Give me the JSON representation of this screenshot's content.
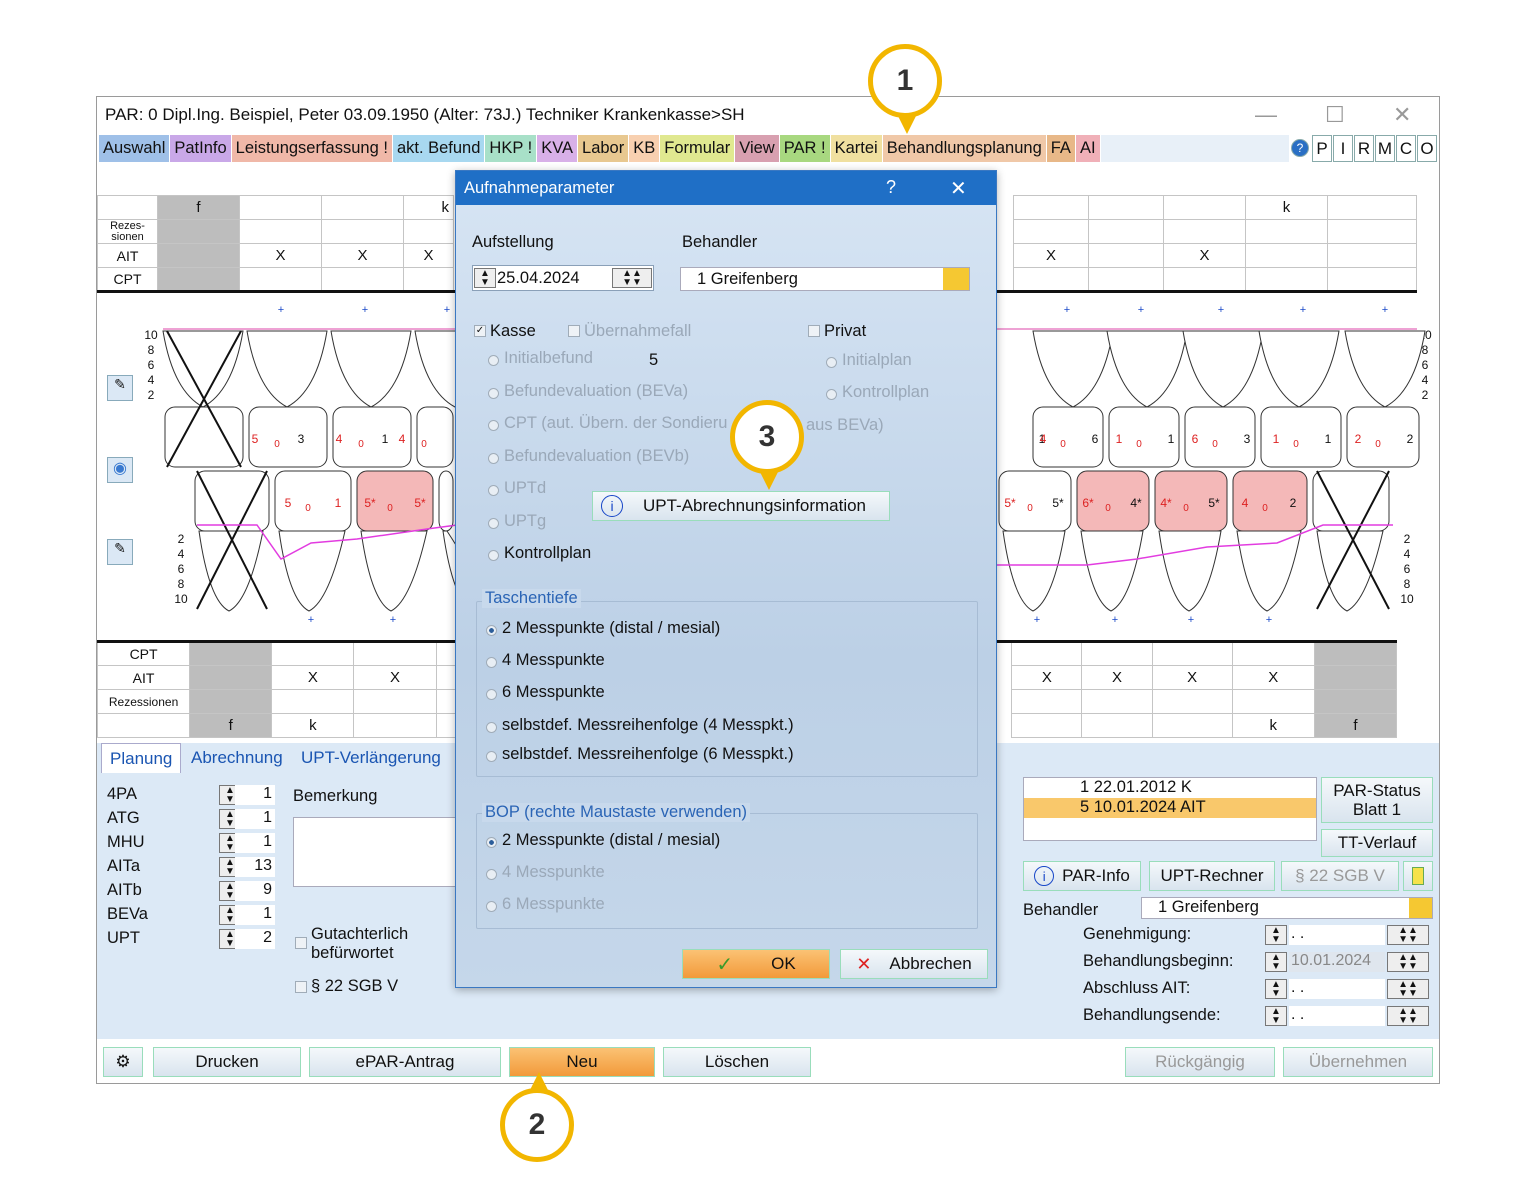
{
  "window": {
    "title": "PAR: 0  Dipl.Ing. Beispiel, Peter  03.09.1950 (Alter: 73J.)  Techniker Krankenkasse>SH",
    "controls": [
      "—",
      "☐",
      "✕"
    ]
  },
  "menu": [
    {
      "label": "Auswahl",
      "color": "#9fc0e8"
    },
    {
      "label": "PatInfo",
      "color": "#c9a8e8"
    },
    {
      "label": "Leistungserfassung !",
      "color": "#f0b8a8"
    },
    {
      "label": "akt. Befund",
      "color": "#a8d8f0"
    },
    {
      "label": "HKP !",
      "color": "#a8e0c8"
    },
    {
      "label": "KVA",
      "color": "#d8b0e8"
    },
    {
      "label": "Labor",
      "color": "#e8c890"
    },
    {
      "label": "KB",
      "color": "#f8d0b0"
    },
    {
      "label": "Formular",
      "color": "#e0e890"
    },
    {
      "label": "View",
      "color": "#d8a0b0"
    },
    {
      "label": "PAR !",
      "color": "#a8d880"
    },
    {
      "label": "Kartei",
      "color": "#f0e0a0"
    },
    {
      "label": "Behandlungsplanung",
      "color": "#f0c8a8"
    },
    {
      "label": "FA",
      "color": "#e8b888"
    },
    {
      "label": "AI",
      "color": "#f0b0b8"
    }
  ],
  "menu_right": [
    "?",
    "P",
    "I",
    "R",
    "M",
    "C",
    "O"
  ],
  "upper_table": {
    "row_labels": [
      "Rezes-\nsionen",
      "AIT",
      "CPT"
    ],
    "col_f": "f",
    "left_k": "k",
    "right_k": "k",
    "x_mark": "X"
  },
  "lower_table": {
    "row_labels": [
      "CPT",
      "AIT",
      "Rezessionen"
    ],
    "f": "f",
    "k": "k",
    "x_mark": "X"
  },
  "scale_top": [
    "10",
    "8",
    "6",
    "4",
    "2"
  ],
  "scale_bottom": [
    "2",
    "4",
    "6",
    "8",
    "10"
  ],
  "teeth_upper_left": [
    [
      "5",
      "0",
      "3"
    ],
    [
      "4",
      "0",
      "1"
    ],
    [
      "4",
      "0",
      ""
    ]
  ],
  "teeth_upper_right": [
    [
      "",
      "",
      "1"
    ],
    [
      "4",
      "0",
      "6"
    ],
    [
      "1",
      "0",
      "1"
    ],
    [
      "6",
      "0",
      "3"
    ],
    [
      "1",
      "0",
      "1"
    ],
    [
      "2",
      "0",
      "2"
    ]
  ],
  "teeth_lower_left": [
    [
      "5",
      "0",
      "1"
    ],
    [
      "5*",
      "0",
      "5*"
    ],
    [
      "",
      "",
      ""
    ]
  ],
  "teeth_lower_right": [
    [
      "5*",
      "0",
      "5*"
    ],
    [
      "6*",
      "0",
      "4*"
    ],
    [
      "4*",
      "0",
      "5*"
    ],
    [
      "4",
      "0",
      "2"
    ]
  ],
  "tabs": [
    "Planung",
    "Abrechnung",
    "UPT-Verlängerung"
  ],
  "planning": [
    {
      "label": "4PA",
      "value": "1"
    },
    {
      "label": "ATG",
      "value": "1"
    },
    {
      "label": "MHU",
      "value": "1"
    },
    {
      "label": "AITa",
      "value": "13"
    },
    {
      "label": "AITb",
      "value": "9"
    },
    {
      "label": "BEVa",
      "value": "1"
    },
    {
      "label": "UPT",
      "value": "2"
    }
  ],
  "bemerkung": "Bemerkung",
  "gutachter": "Gutachterlich\nbefürwortet",
  "sgb": "§ 22 SGB V",
  "history": [
    {
      "text": "1  22.01.2012  K"
    },
    {
      "text": "5  10.01.2024  AIT"
    }
  ],
  "right_buttons": {
    "par_status": "PAR-Status\nBlatt 1",
    "tt_verlauf": "TT-Verlauf",
    "par_info": "PAR-Info",
    "upt_rechner": "UPT-Rechner",
    "sgb": "§ 22 SGB V"
  },
  "behandler_label": "Behandler",
  "behandler_value": "1 Greifenberg",
  "dates": [
    {
      "label": "Genehmigung:",
      "value": " .  . "
    },
    {
      "label": "Behandlungsbeginn:",
      "value": "10.01.2024"
    },
    {
      "label": "Abschluss AIT:",
      "value": " .  . "
    },
    {
      "label": "Behandlungsende:",
      "value": " .  . "
    }
  ],
  "bottom_buttons": {
    "drucken": "Drucken",
    "epar": "ePAR-Antrag",
    "neu": "Neu",
    "loeschen": "Löschen",
    "rueckgaengig": "Rückgängig",
    "uebernehmen": "Übernehmen"
  },
  "dialog": {
    "title": "Aufnahmeparameter",
    "help": "?",
    "close": "✕",
    "aufstellung_label": "Aufstellung",
    "aufstellung_value": "25.04.2024",
    "behandler_label": "Behandler",
    "behandler_value": "1 Greifenberg",
    "kasse": "Kasse",
    "uebernahmefall": "Übernahmefall",
    "privat": "Privat",
    "left_options": [
      {
        "label": "Initialbefund",
        "enabled": false
      },
      {
        "label": "Befundevaluation (BEVa)",
        "enabled": false
      },
      {
        "label": "CPT (aut. Übern. der Sondieru",
        "enabled": false
      },
      {
        "label": "Befundevaluation (BEVb)",
        "enabled": false
      },
      {
        "label": "UPTd",
        "enabled": false
      },
      {
        "label": "UPTg",
        "enabled": false
      },
      {
        "label": "Kontrollplan",
        "enabled": true
      }
    ],
    "initial_count": "5",
    "cpt_suffix": "aus BEVa)",
    "right_options": [
      {
        "label": "Initialplan"
      },
      {
        "label": "Kontrollplan"
      }
    ],
    "upt_info_button": "UPT-Abrechnungsinformation",
    "taschentiefe_title": "Taschentiefe",
    "taschentiefe": [
      {
        "label": "2 Messpunkte (distal / mesial)",
        "selected": true
      },
      {
        "label": "4 Messpunkte"
      },
      {
        "label": "6 Messpunkte"
      },
      {
        "label": "selbstdef. Messreihenfolge (4 Messpkt.)"
      },
      {
        "label": "selbstdef. Messreihenfolge (6 Messpkt.)"
      }
    ],
    "bop_title": "BOP (rechte Maustaste verwenden)",
    "bop": [
      {
        "label": "2 Messpunkte (distal / mesial)",
        "selected": true,
        "enabled": true
      },
      {
        "label": "4 Messpunkte",
        "enabled": false
      },
      {
        "label": "6 Messpunkte",
        "enabled": false
      }
    ],
    "ok": "OK",
    "abbrechen": "Abbrechen"
  },
  "callouts": [
    "1",
    "2",
    "3"
  ],
  "colors": {
    "accent": "#1f6fc6",
    "callout": "#f2b600",
    "neu_button": "#f7a845",
    "highlight_row": "#f9c86b",
    "inflamed": "#f4b8b8"
  }
}
